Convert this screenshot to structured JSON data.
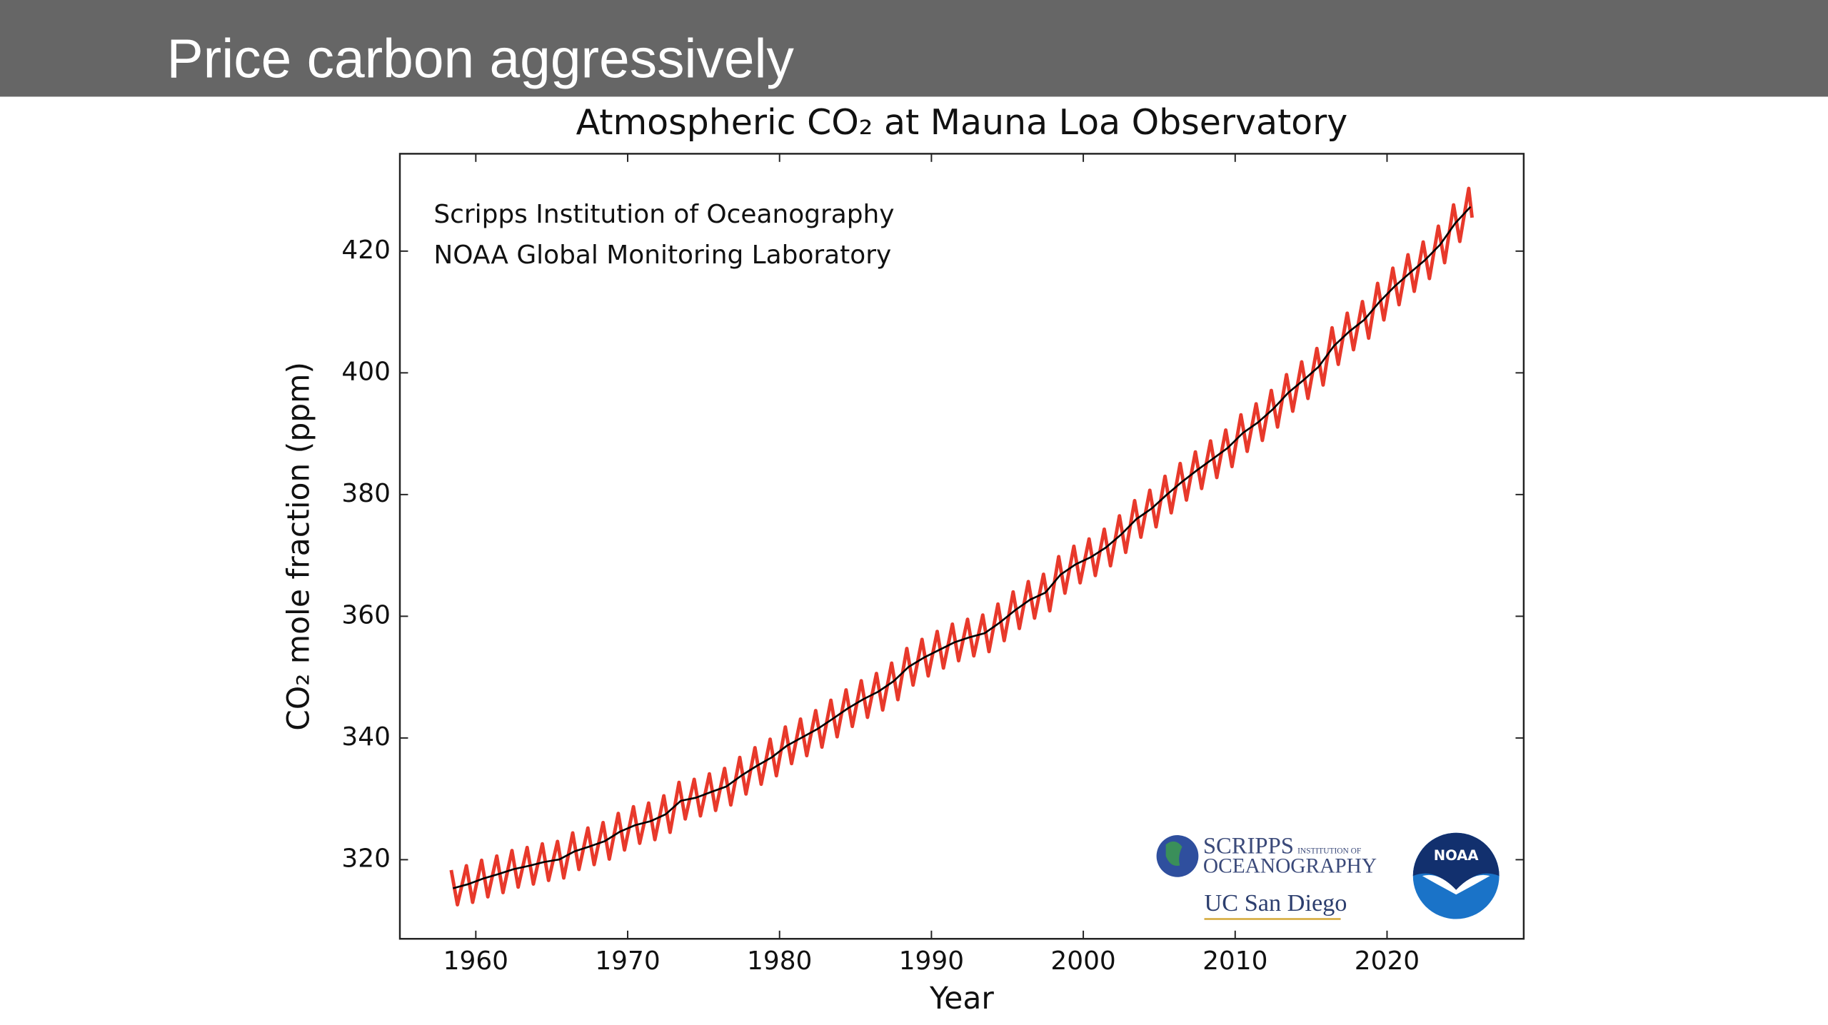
{
  "slide": {
    "title": "Price carbon aggressively"
  },
  "logos": {
    "scripps_name": "SCRIPPS",
    "scripps_sub": "INSTITUTION OF",
    "scripps_ocean": "OCEANOGRAPHY",
    "ucsd": "UC San Diego",
    "noaa": "NOAA"
  },
  "chart_data": {
    "type": "line",
    "title": "Atmospheric CO₂ at Mauna Loa Observatory",
    "annotations": [
      "Scripps Institution of Oceanography",
      "NOAA Global Monitoring Laboratory"
    ],
    "xlabel": "Year",
    "ylabel": "CO₂ mole fraction (ppm)",
    "xlim": [
      1955,
      2029
    ],
    "ylim": [
      307,
      436
    ],
    "xticks": [
      1960,
      1970,
      1980,
      1990,
      2000,
      2010,
      2020
    ],
    "yticks": [
      320,
      340,
      360,
      380,
      400,
      420
    ],
    "grid": false,
    "series": [
      {
        "color": "#e8392b",
        "x": [
          1958.38,
          1958.79,
          1959.38,
          1959.79,
          1960.38,
          1960.79,
          1961.38,
          1961.79,
          1962.38,
          1962.79,
          1963.38,
          1963.79,
          1964.38,
          1964.79,
          1965.38,
          1965.79,
          1966.38,
          1966.79,
          1967.38,
          1967.79,
          1968.38,
          1968.79,
          1969.38,
          1969.79,
          1970.38,
          1970.79,
          1971.38,
          1971.79,
          1972.38,
          1972.79,
          1973.38,
          1973.79,
          1974.38,
          1974.79,
          1975.38,
          1975.79,
          1976.38,
          1976.79,
          1977.38,
          1977.79,
          1978.38,
          1978.79,
          1979.38,
          1979.79,
          1980.38,
          1980.79,
          1981.38,
          1981.79,
          1982.38,
          1982.79,
          1983.38,
          1983.79,
          1984.38,
          1984.79,
          1985.38,
          1985.79,
          1986.38,
          1986.79,
          1987.38,
          1987.79,
          1988.38,
          1988.79,
          1989.38,
          1989.79,
          1990.38,
          1990.79,
          1991.38,
          1991.79,
          1992.38,
          1992.79,
          1993.38,
          1993.79,
          1994.38,
          1994.79,
          1995.38,
          1995.79,
          1996.38,
          1996.79,
          1997.38,
          1997.79,
          1998.38,
          1998.79,
          1999.38,
          1999.79,
          2000.38,
          2000.79,
          2001.38,
          2001.79,
          2002.38,
          2002.79,
          2003.38,
          2003.79,
          2004.38,
          2004.79,
          2005.38,
          2005.79,
          2006.38,
          2006.79,
          2007.38,
          2007.79,
          2008.38,
          2008.79,
          2009.38,
          2009.79,
          2010.38,
          2010.79,
          2011.38,
          2011.79,
          2012.38,
          2012.79,
          2013.38,
          2013.79,
          2014.38,
          2014.79,
          2015.38,
          2015.79,
          2016.38,
          2016.79,
          2017.38,
          2017.79,
          2018.38,
          2018.79,
          2019.38,
          2019.79,
          2020.38,
          2020.79,
          2021.38,
          2021.79,
          2022.38,
          2022.79,
          2023.38,
          2023.79,
          2024.38,
          2024.79,
          2025.38,
          2025.6
        ],
        "values": [
          318.3,
          312.6,
          319.0,
          313.0,
          319.9,
          313.9,
          320.6,
          314.6,
          321.5,
          315.5,
          322.0,
          316.0,
          322.6,
          316.6,
          323.0,
          317.0,
          324.4,
          318.4,
          325.2,
          319.2,
          326.1,
          320.1,
          327.6,
          321.6,
          328.7,
          322.7,
          329.3,
          323.3,
          330.5,
          324.5,
          332.7,
          326.7,
          333.2,
          327.2,
          334.1,
          328.1,
          335.0,
          329.0,
          336.8,
          330.8,
          338.4,
          332.4,
          339.8,
          333.8,
          341.8,
          335.8,
          343.1,
          337.1,
          344.5,
          338.5,
          346.2,
          340.2,
          347.9,
          341.9,
          349.4,
          343.4,
          350.6,
          344.6,
          352.3,
          346.3,
          354.7,
          348.7,
          356.2,
          350.2,
          357.5,
          351.5,
          358.7,
          352.7,
          359.5,
          353.5,
          360.2,
          354.2,
          362.0,
          356.0,
          364.0,
          358.0,
          365.7,
          359.7,
          366.9,
          360.9,
          369.8,
          363.8,
          371.5,
          365.5,
          372.7,
          366.7,
          374.3,
          368.3,
          376.5,
          370.5,
          379.0,
          373.0,
          380.7,
          374.7,
          383.0,
          377.0,
          385.1,
          379.1,
          387.0,
          381.0,
          388.8,
          382.8,
          390.6,
          384.6,
          393.1,
          387.1,
          394.9,
          388.9,
          397.1,
          391.1,
          399.7,
          393.7,
          401.8,
          395.8,
          404.0,
          398.0,
          407.4,
          401.4,
          409.8,
          403.8,
          411.7,
          405.7,
          414.7,
          408.7,
          417.2,
          411.2,
          419.4,
          413.4,
          421.5,
          415.5,
          424.1,
          418.1,
          427.6,
          421.6,
          430.3,
          425.5
        ]
      },
      {
        "color": "#000000",
        "x": [
          1958.5,
          1959.5,
          1960.5,
          1961.5,
          1962.5,
          1963.5,
          1964.5,
          1965.5,
          1966.5,
          1967.5,
          1968.5,
          1969.5,
          1970.5,
          1971.5,
          1972.5,
          1973.5,
          1974.5,
          1975.5,
          1976.5,
          1977.5,
          1978.5,
          1979.5,
          1980.5,
          1981.5,
          1982.5,
          1983.5,
          1984.5,
          1985.5,
          1986.5,
          1987.5,
          1988.5,
          1989.5,
          1990.5,
          1991.5,
          1992.5,
          1993.5,
          1994.5,
          1995.5,
          1996.5,
          1997.5,
          1998.5,
          1999.5,
          2000.5,
          2001.5,
          2002.5,
          2003.5,
          2004.5,
          2005.5,
          2006.5,
          2007.5,
          2008.5,
          2009.5,
          2010.5,
          2011.5,
          2012.5,
          2013.5,
          2014.5,
          2015.5,
          2016.5,
          2017.5,
          2018.5,
          2019.5,
          2020.5,
          2021.5,
          2022.5,
          2023.5,
          2024.5,
          2025.5
        ],
        "values": [
          315.3,
          315.98,
          316.91,
          317.64,
          318.45,
          318.99,
          319.62,
          320.04,
          321.37,
          322.18,
          323.05,
          324.62,
          325.68,
          326.32,
          327.46,
          329.68,
          330.19,
          331.13,
          332.03,
          333.84,
          335.41,
          336.84,
          338.76,
          340.12,
          341.48,
          343.15,
          344.87,
          346.35,
          347.61,
          349.31,
          351.69,
          353.2,
          354.45,
          355.7,
          356.54,
          357.21,
          358.96,
          360.97,
          362.74,
          363.88,
          366.84,
          368.54,
          369.71,
          371.32,
          373.45,
          375.98,
          377.7,
          379.98,
          382.09,
          384.02,
          385.83,
          387.64,
          390.1,
          391.85,
          394.06,
          396.74,
          398.81,
          401.01,
          404.41,
          406.76,
          408.72,
          411.65,
          414.21,
          416.41,
          418.53,
          421.08,
          424.61,
          427.3
        ]
      }
    ]
  }
}
